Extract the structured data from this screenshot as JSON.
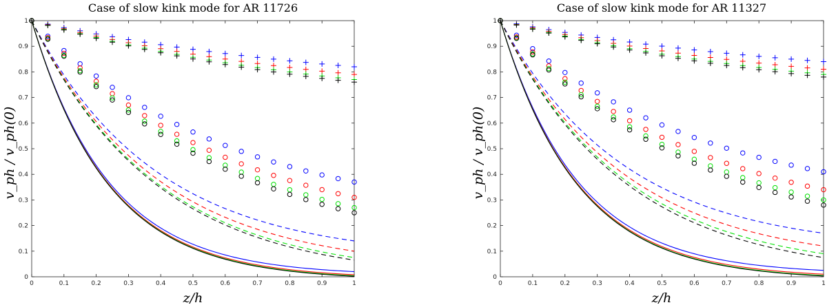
{
  "colors": {
    "blue": "#0000ff",
    "red": "#ff0000",
    "green": "#00e000",
    "black": "#000000"
  },
  "chart_data": [
    {
      "type": "line",
      "title": "Case of slow kink mode for AR 11726",
      "xlabel": "z/h",
      "ylabel": "v_ph / v_ph(0)",
      "xlim": [
        0,
        1
      ],
      "ylim": [
        0,
        1
      ],
      "xticks": [
        "0",
        "0.1",
        "0.2",
        "0.3",
        "0.4",
        "0.5",
        "0.6",
        "0.7",
        "0.8",
        "0.9",
        "1"
      ],
      "yticks": [
        "0",
        "0.1",
        "0.2",
        "0.3",
        "0.4",
        "0.5",
        "0.6",
        "0.7",
        "0.8",
        "0.9",
        "1"
      ],
      "series": [
        {
          "name": "blue solid",
          "color": "blue",
          "style": "solid",
          "end": 0.02
        },
        {
          "name": "red solid",
          "color": "red",
          "style": "solid",
          "end": 0.008
        },
        {
          "name": "green solid",
          "color": "green",
          "style": "solid",
          "end": 0.004
        },
        {
          "name": "black solid",
          "color": "black",
          "style": "solid",
          "end": 0.002
        },
        {
          "name": "blue dashed",
          "color": "blue",
          "style": "dashed",
          "end": 0.14
        },
        {
          "name": "red dashed",
          "color": "red",
          "style": "dashed",
          "end": 0.1
        },
        {
          "name": "green dashed",
          "color": "green",
          "style": "dashed",
          "end": 0.075
        },
        {
          "name": "black dashed",
          "color": "black",
          "style": "dashed",
          "end": 0.065
        },
        {
          "name": "blue circles",
          "color": "blue",
          "style": "circle",
          "end": 0.37
        },
        {
          "name": "red circles",
          "color": "red",
          "style": "circle",
          "end": 0.31
        },
        {
          "name": "green circles",
          "color": "green",
          "style": "circle",
          "end": 0.27
        },
        {
          "name": "black circles",
          "color": "black",
          "style": "circle",
          "end": 0.25
        },
        {
          "name": "blue plus",
          "color": "blue",
          "style": "plus",
          "end": 0.82
        },
        {
          "name": "red plus",
          "color": "red",
          "style": "plus",
          "end": 0.79
        },
        {
          "name": "green plus",
          "color": "green",
          "style": "plus",
          "end": 0.77
        },
        {
          "name": "black plus",
          "color": "black",
          "style": "plus",
          "end": 0.76
        }
      ]
    },
    {
      "type": "line",
      "title": "Case of slow kink mode for AR 11327",
      "xlabel": "z/h",
      "ylabel": "v_ph / v_ph(0)",
      "xlim": [
        0,
        1
      ],
      "ylim": [
        0,
        1
      ],
      "xticks": [
        "0",
        "0.1",
        "0.2",
        "0.3",
        "0.4",
        "0.5",
        "0.6",
        "0.7",
        "0.8",
        "0.9",
        "1"
      ],
      "yticks": [
        "0",
        "0.1",
        "0.2",
        "0.3",
        "0.4",
        "0.5",
        "0.6",
        "0.7",
        "0.8",
        "0.9",
        "1"
      ],
      "series": [
        {
          "name": "blue solid",
          "color": "blue",
          "style": "solid",
          "end": 0.025
        },
        {
          "name": "red solid",
          "color": "red",
          "style": "solid",
          "end": 0.01
        },
        {
          "name": "green solid",
          "color": "green",
          "style": "solid",
          "end": 0.005
        },
        {
          "name": "black solid",
          "color": "black",
          "style": "solid",
          "end": 0.003
        },
        {
          "name": "blue dashed",
          "color": "blue",
          "style": "dashed",
          "end": 0.17
        },
        {
          "name": "red dashed",
          "color": "red",
          "style": "dashed",
          "end": 0.12
        },
        {
          "name": "green dashed",
          "color": "green",
          "style": "dashed",
          "end": 0.09
        },
        {
          "name": "black dashed",
          "color": "black",
          "style": "dashed",
          "end": 0.075
        },
        {
          "name": "blue circles",
          "color": "blue",
          "style": "circle",
          "end": 0.41
        },
        {
          "name": "red circles",
          "color": "red",
          "style": "circle",
          "end": 0.34
        },
        {
          "name": "green circles",
          "color": "green",
          "style": "circle",
          "end": 0.3
        },
        {
          "name": "black circles",
          "color": "black",
          "style": "circle",
          "end": 0.28
        },
        {
          "name": "blue plus",
          "color": "blue",
          "style": "plus",
          "end": 0.84
        },
        {
          "name": "red plus",
          "color": "red",
          "style": "plus",
          "end": 0.81
        },
        {
          "name": "green plus",
          "color": "green",
          "style": "plus",
          "end": 0.79
        },
        {
          "name": "black plus",
          "color": "black",
          "style": "plus",
          "end": 0.78
        }
      ]
    }
  ]
}
